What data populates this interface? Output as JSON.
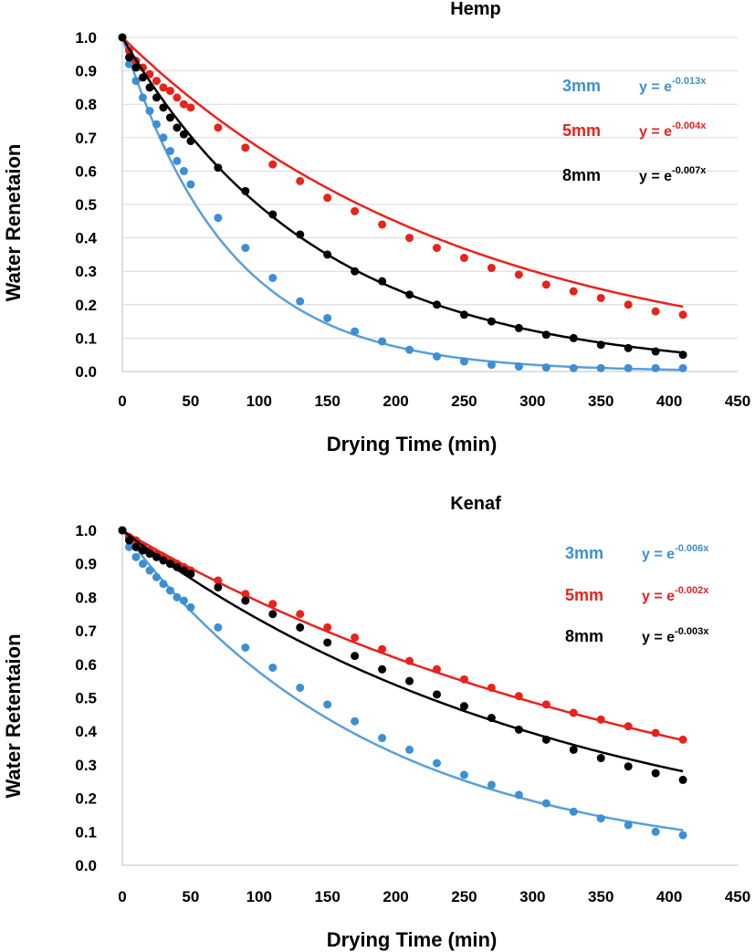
{
  "chart_data": [
    {
      "type": "scatter",
      "title": "Hemp",
      "xlabel": "Drying Time (min)",
      "ylabel": "Water Renetaion",
      "xlim": [
        0,
        450
      ],
      "ylim": [
        0,
        1.0
      ],
      "x_ticks": [
        "0",
        "50",
        "100",
        "150",
        "200",
        "250",
        "300",
        "350",
        "400",
        "450"
      ],
      "y_ticks": [
        "0.0",
        "0.1",
        "0.2",
        "0.3",
        "0.4",
        "0.5",
        "0.6",
        "0.7",
        "0.8",
        "0.9",
        "1.0"
      ],
      "grid": "horizontal",
      "series": [
        {
          "name": "3mm",
          "color": "#3c8fd4",
          "fit_color": "#5a9fd8",
          "k": 0.013,
          "eq_base": "y = e",
          "eq_exp": "-0.013x",
          "x": [
            0,
            5,
            10,
            15,
            20,
            25,
            30,
            35,
            40,
            45,
            50,
            70,
            90,
            110,
            130,
            150,
            170,
            190,
            210,
            230,
            250,
            270,
            290,
            310,
            330,
            350,
            370,
            390,
            410
          ],
          "y": [
            1.0,
            0.92,
            0.87,
            0.82,
            0.78,
            0.74,
            0.7,
            0.66,
            0.63,
            0.6,
            0.56,
            0.46,
            0.37,
            0.28,
            0.21,
            0.16,
            0.12,
            0.09,
            0.065,
            0.045,
            0.03,
            0.02,
            0.015,
            0.012,
            0.01,
            0.01,
            0.01,
            0.01,
            0.01
          ]
        },
        {
          "name": "5mm",
          "color": "#e8221c",
          "fit_color": "#e8221c",
          "k": 0.004,
          "eq_base": "y = e",
          "eq_exp": "-0.004x",
          "x": [
            0,
            5,
            10,
            15,
            20,
            25,
            30,
            35,
            40,
            45,
            50,
            70,
            90,
            110,
            130,
            150,
            170,
            190,
            210,
            230,
            250,
            270,
            290,
            310,
            330,
            350,
            370,
            390,
            410
          ],
          "y": [
            1.0,
            0.96,
            0.93,
            0.91,
            0.89,
            0.87,
            0.85,
            0.84,
            0.82,
            0.8,
            0.79,
            0.73,
            0.67,
            0.62,
            0.57,
            0.52,
            0.48,
            0.44,
            0.4,
            0.37,
            0.34,
            0.31,
            0.29,
            0.26,
            0.24,
            0.22,
            0.2,
            0.18,
            0.17
          ]
        },
        {
          "name": "8mm",
          "color": "#000000",
          "fit_color": "#000000",
          "k": 0.007,
          "eq_base": "y = e",
          "eq_exp": "-0.007x",
          "x": [
            0,
            5,
            10,
            15,
            20,
            25,
            30,
            35,
            40,
            45,
            50,
            70,
            90,
            110,
            130,
            150,
            170,
            190,
            210,
            230,
            250,
            270,
            290,
            310,
            330,
            350,
            370,
            390,
            410
          ],
          "y": [
            1.0,
            0.94,
            0.91,
            0.88,
            0.85,
            0.82,
            0.79,
            0.76,
            0.73,
            0.71,
            0.69,
            0.61,
            0.54,
            0.47,
            0.41,
            0.35,
            0.3,
            0.27,
            0.23,
            0.2,
            0.17,
            0.15,
            0.13,
            0.11,
            0.1,
            0.08,
            0.07,
            0.06,
            0.05
          ]
        }
      ]
    },
    {
      "type": "scatter",
      "title": "Kenaf",
      "xlabel": "Drying Time (min)",
      "ylabel": "Water Retentaion",
      "xlim": [
        0,
        450
      ],
      "ylim": [
        0,
        1.0
      ],
      "x_ticks": [
        "0",
        "50",
        "100",
        "150",
        "200",
        "250",
        "300",
        "350",
        "400",
        "450"
      ],
      "y_ticks": [
        "0.0",
        "0.1",
        "0.2",
        "0.3",
        "0.4",
        "0.5",
        "0.6",
        "0.7",
        "0.8",
        "0.9",
        "1.0"
      ],
      "grid": "none",
      "series": [
        {
          "name": "3mm",
          "color": "#3c8fd4",
          "fit_color": "#5a9fd8",
          "k": 0.0055,
          "eq_base": "y = e",
          "eq_exp": "-0.006x",
          "x": [
            0,
            5,
            10,
            15,
            20,
            25,
            30,
            35,
            40,
            45,
            50,
            70,
            90,
            110,
            130,
            150,
            170,
            190,
            210,
            230,
            250,
            270,
            290,
            310,
            330,
            350,
            370,
            390,
            410
          ],
          "y": [
            1.0,
            0.95,
            0.92,
            0.9,
            0.88,
            0.86,
            0.84,
            0.82,
            0.8,
            0.79,
            0.77,
            0.71,
            0.65,
            0.59,
            0.53,
            0.48,
            0.43,
            0.38,
            0.345,
            0.305,
            0.27,
            0.24,
            0.21,
            0.185,
            0.16,
            0.14,
            0.12,
            0.1,
            0.09
          ]
        },
        {
          "name": "5mm",
          "color": "#e8221c",
          "fit_color": "#e8221c",
          "k": 0.0024,
          "eq_base": "y = e",
          "eq_exp": "-0.002x",
          "x": [
            0,
            5,
            10,
            15,
            20,
            25,
            30,
            35,
            40,
            45,
            50,
            70,
            90,
            110,
            130,
            150,
            170,
            190,
            210,
            230,
            250,
            270,
            290,
            310,
            330,
            350,
            370,
            390,
            410
          ],
          "y": [
            1.0,
            0.98,
            0.97,
            0.95,
            0.94,
            0.93,
            0.92,
            0.91,
            0.9,
            0.89,
            0.88,
            0.85,
            0.81,
            0.78,
            0.75,
            0.71,
            0.68,
            0.645,
            0.61,
            0.585,
            0.555,
            0.53,
            0.505,
            0.48,
            0.455,
            0.435,
            0.415,
            0.395,
            0.375
          ]
        },
        {
          "name": "8mm",
          "color": "#000000",
          "fit_color": "#000000",
          "k": 0.0031,
          "eq_base": "y = e",
          "eq_exp": "-0.003x",
          "x": [
            0,
            5,
            10,
            15,
            20,
            25,
            30,
            35,
            40,
            45,
            50,
            70,
            90,
            110,
            130,
            150,
            170,
            190,
            210,
            230,
            250,
            270,
            290,
            310,
            330,
            350,
            370,
            390,
            410
          ],
          "y": [
            1.0,
            0.97,
            0.95,
            0.94,
            0.93,
            0.92,
            0.91,
            0.9,
            0.89,
            0.88,
            0.87,
            0.83,
            0.79,
            0.75,
            0.71,
            0.665,
            0.625,
            0.585,
            0.55,
            0.51,
            0.475,
            0.44,
            0.405,
            0.375,
            0.345,
            0.32,
            0.295,
            0.275,
            0.255
          ]
        }
      ]
    }
  ]
}
